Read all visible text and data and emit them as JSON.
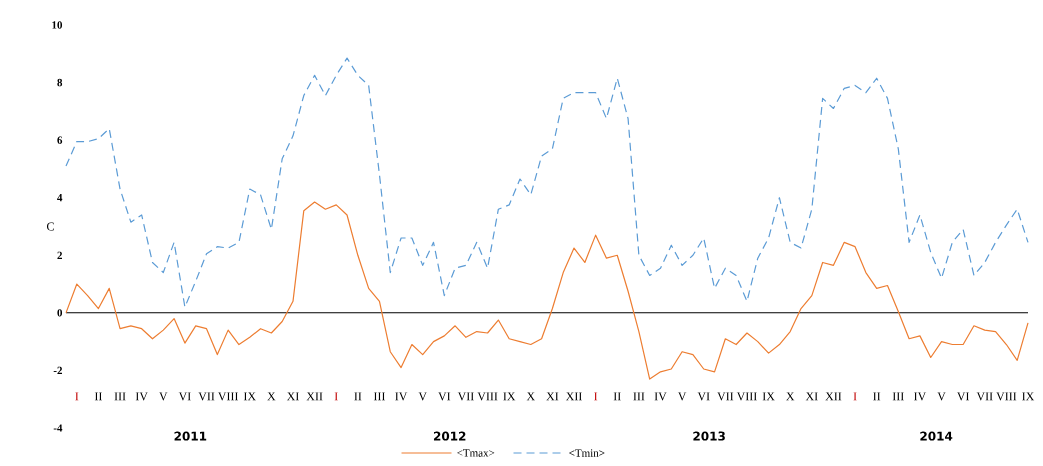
{
  "chart_data": {
    "type": "line",
    "ylabel": "C",
    "ylim": [
      -4,
      10
    ],
    "yticks": [
      -4,
      -2,
      0,
      2,
      4,
      6,
      8,
      10
    ],
    "categories": [
      null,
      "I",
      null,
      "II",
      null,
      "III",
      null,
      "IV",
      null,
      "V",
      null,
      "VI",
      null,
      "VII",
      null,
      "VIII",
      null,
      "IX",
      null,
      "X",
      null,
      "XI",
      null,
      "XII",
      null,
      "I",
      null,
      "II",
      null,
      "III",
      null,
      "IV",
      null,
      "V",
      null,
      "VI",
      null,
      "VII",
      null,
      "VIII",
      null,
      "IX",
      null,
      "X",
      null,
      "XI",
      null,
      "XII",
      null,
      "I",
      null,
      "II",
      null,
      "III",
      null,
      "IV",
      null,
      "V",
      null,
      "VI",
      null,
      "VII",
      null,
      "VIII",
      null,
      "IX",
      null,
      "X",
      null,
      "XI",
      null,
      "XII",
      null,
      "I",
      null,
      "II",
      null,
      "III",
      null,
      "IV",
      null,
      "V",
      null,
      "VI",
      null,
      "VII",
      null,
      "VIII",
      null,
      "IX"
    ],
    "annotations": [
      "2011",
      "2012",
      "2013",
      "2014"
    ],
    "legend": "bottom",
    "series": [
      {
        "name": "<Tmax>",
        "color": "#ed7d31",
        "line_style": "solid",
        "values": [
          0.0,
          1.0,
          0.6,
          0.15,
          0.85,
          -0.55,
          -0.45,
          -0.55,
          -0.9,
          -0.6,
          -0.2,
          -1.05,
          -0.45,
          -0.55,
          -1.45,
          -0.6,
          -1.1,
          -0.85,
          -0.55,
          -0.7,
          -0.3,
          0.4,
          3.55,
          3.85,
          3.6,
          3.75,
          3.4,
          2.0,
          0.85,
          0.4,
          -1.35,
          -1.9,
          -1.1,
          -1.45,
          -1.0,
          -0.8,
          -0.45,
          -0.85,
          -0.65,
          -0.7,
          -0.25,
          -0.9,
          -1.0,
          -1.1,
          -0.9,
          0.15,
          1.4,
          2.25,
          1.75,
          2.7,
          1.9,
          2.0,
          0.75,
          -0.65,
          -2.3,
          -2.05,
          -1.95,
          -1.35,
          -1.45,
          -1.95,
          -2.05,
          -0.9,
          -1.1,
          -0.7,
          -1.0,
          -1.4,
          -1.1,
          -0.65,
          0.15,
          0.6,
          1.75,
          1.65,
          2.45,
          2.3,
          1.4,
          0.85,
          0.95,
          0.05,
          -0.9,
          -0.8,
          -1.55,
          -1.0,
          -1.1,
          -1.1,
          -0.45,
          -0.6,
          -0.65,
          -1.1,
          -1.65,
          -0.35
        ]
      },
      {
        "name": "<Tmin>",
        "color": "#5b9bd5",
        "line_style": "dashed",
        "values": [
          5.1,
          5.95,
          5.95,
          6.05,
          6.4,
          4.3,
          3.15,
          3.4,
          1.75,
          1.4,
          2.45,
          0.2,
          1.1,
          2.05,
          2.3,
          2.25,
          2.45,
          4.3,
          4.1,
          2.9,
          5.35,
          6.15,
          7.55,
          8.25,
          7.55,
          8.25,
          8.85,
          8.25,
          7.9,
          4.8,
          1.4,
          2.6,
          2.6,
          1.65,
          2.45,
          0.6,
          1.55,
          1.65,
          2.45,
          1.55,
          3.6,
          3.75,
          4.65,
          4.1,
          5.45,
          5.7,
          7.45,
          7.65,
          7.65,
          7.65,
          6.75,
          8.15,
          6.75,
          2.0,
          1.3,
          1.55,
          2.35,
          1.65,
          2.0,
          2.6,
          0.85,
          1.55,
          1.3,
          0.4,
          1.9,
          2.6,
          4.0,
          2.45,
          2.25,
          3.6,
          7.45,
          7.1,
          7.8,
          7.9,
          7.65,
          8.15,
          7.45,
          5.7,
          2.45,
          3.4,
          2.1,
          1.2,
          2.45,
          2.9,
          1.3,
          1.75,
          2.45,
          3.05,
          3.6,
          2.45
        ]
      }
    ]
  }
}
